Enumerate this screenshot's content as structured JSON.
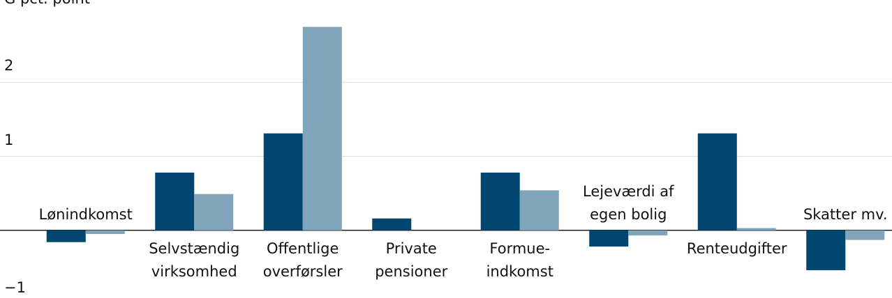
{
  "chart_data": {
    "type": "bar",
    "y_axis_label": "G pct. point",
    "categories": [
      "Lønindkomst",
      "Selvstændig\nvirksomhed",
      "Offentlige\noverførsler",
      "Private\npensioner",
      "Formue-\nindkomst",
      "Lejeværdi af\negen bolig",
      "Renteudgifter",
      "Skatter mv."
    ],
    "series": [
      {
        "color": "#00466e",
        "values": [
          -0.16,
          0.78,
          1.31,
          0.16,
          0.78,
          -0.22,
          1.31,
          -0.54
        ]
      },
      {
        "color": "#80a4b9",
        "values": [
          -0.05,
          0.49,
          2.75,
          0,
          0.54,
          -0.07,
          0.03,
          -0.13
        ]
      }
    ],
    "ylim": [
      -1,
      3
    ],
    "yticks": [
      {
        "value": -1,
        "label": "−1"
      },
      1,
      2
    ],
    "grid": true
  }
}
